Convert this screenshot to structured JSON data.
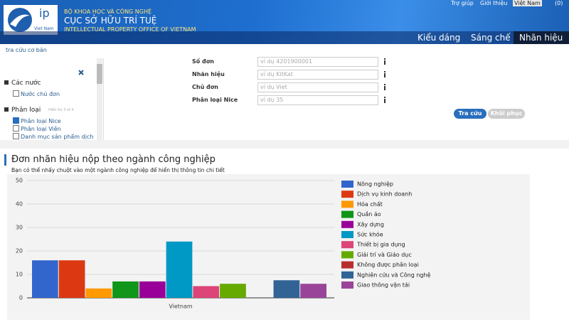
{
  "header": {
    "logo": "ip",
    "logo_sub": "Viet Nam",
    "ministry": "BỘ KHOA HỌC VÀ CÔNG NGHỆ",
    "office": "CỤC SỞ HỮU TRÍ TUỆ",
    "office_en": "INTELLECTUAL PROPERTY OFFICE OF VIETNAM",
    "links": [
      "Trợ giúp",
      "Giới thiệu"
    ],
    "language": "Việt Nam",
    "cart": "(0)"
  },
  "tabs": [
    "Kiểu dáng",
    "Sáng chế",
    "Nhãn hiệu"
  ],
  "breadcrumb": "tra cứu cơ bản",
  "sidebar": {
    "sections": [
      {
        "title": "Các nước",
        "options": [
          {
            "label": "Nước chủ đơn",
            "checked": false
          }
        ]
      },
      {
        "title": "Phân loại",
        "note": "Hiển thị 3 of 4",
        "options": [
          {
            "label": "Phân loại Nice",
            "checked": true
          },
          {
            "label": "Phân loại Viên",
            "checked": false
          },
          {
            "label": "Danh mục sản phẩm dịch",
            "checked": false
          }
        ]
      }
    ]
  },
  "form": {
    "fields": [
      {
        "label": "Số đơn",
        "placeholder": "ví dụ 4201900001"
      },
      {
        "label": "Nhãn hiệu",
        "placeholder": "ví dụ KitKat"
      },
      {
        "label": "Chủ đơn",
        "placeholder": "ví dụ Viet"
      },
      {
        "label": "Phân loại Nice",
        "placeholder": "ví dụ 35"
      }
    ],
    "buttons": [
      "Tra cứu",
      "Khôi phục"
    ]
  },
  "chart_data": {
    "type": "bar",
    "title": "Đơn nhãn hiệu nộp theo ngành công nghiệp",
    "subtitle": "Bạn có thể nhấy chuột vào một ngành công nghiệp để hiển thị thông tin chi tiết",
    "categories": [
      "Vietnam"
    ],
    "series": [
      {
        "name": "Nông nghiệp",
        "color": "#3366cc",
        "values": [
          16
        ]
      },
      {
        "name": "Dịch vụ kinh doanh",
        "color": "#dc3912",
        "values": [
          16
        ]
      },
      {
        "name": "Hóa chất",
        "color": "#ff9900",
        "values": [
          4
        ]
      },
      {
        "name": "Quần áo",
        "color": "#109618",
        "values": [
          7
        ]
      },
      {
        "name": "Xây dựng",
        "color": "#990099",
        "values": [
          7
        ]
      },
      {
        "name": "Sức khỏe",
        "color": "#0099c6",
        "values": [
          24
        ]
      },
      {
        "name": "Thiết bị gia dụng",
        "color": "#dd4477",
        "values": [
          5
        ]
      },
      {
        "name": "Giải trí và Giáo dục",
        "color": "#66aa00",
        "values": [
          6
        ]
      },
      {
        "name": "Không được phân loại",
        "color": "#b82e2e",
        "values": [
          0
        ]
      },
      {
        "name": "Nghiên cứu và Công nghệ",
        "color": "#316395",
        "values": [
          7.5
        ]
      },
      {
        "name": "Giao thông vận tải",
        "color": "#994499",
        "values": [
          6
        ]
      }
    ],
    "ylim": [
      0,
      50
    ],
    "yticks": [
      0,
      10,
      20,
      30,
      40,
      50
    ],
    "grid": true,
    "legend": "right"
  }
}
